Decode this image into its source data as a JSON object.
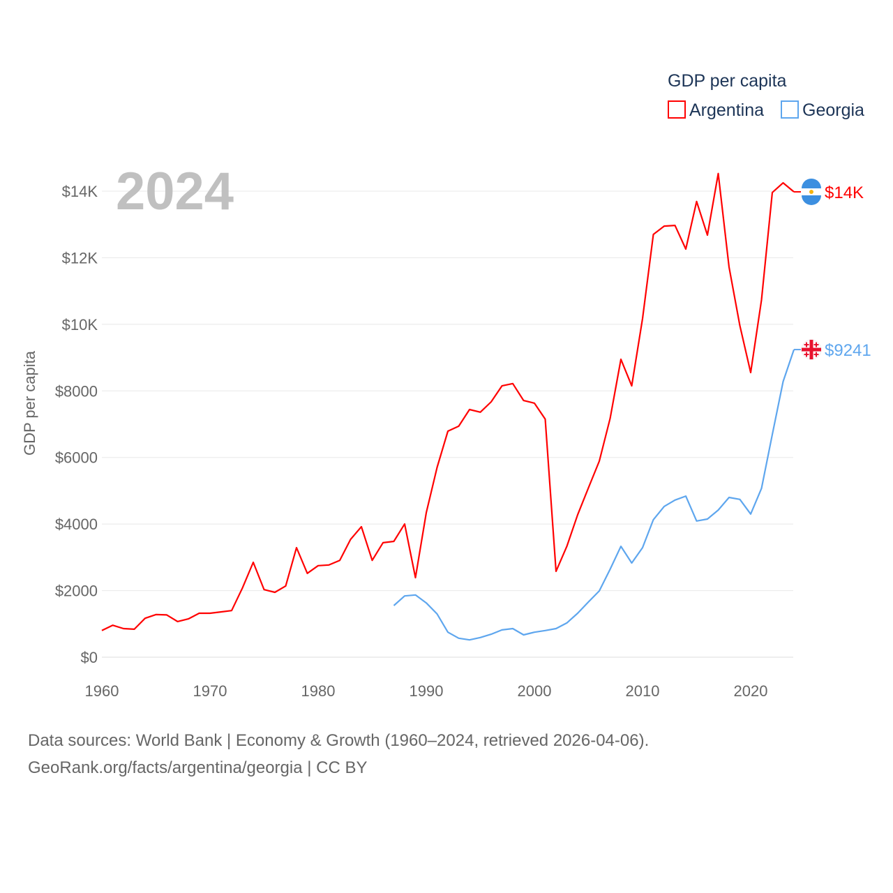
{
  "chart_data": {
    "type": "line",
    "year_label": "2024",
    "ylabel": "GDP per capita",
    "legend": {
      "title": "GDP per capita",
      "placement": "top-right"
    },
    "xlim": [
      1960,
      2024
    ],
    "ylim": [
      0,
      14500
    ],
    "x_ticks": [
      1960,
      1970,
      1980,
      1990,
      2000,
      2010,
      2020
    ],
    "x_tick_labels": [
      "1960",
      "1970",
      "1980",
      "1990",
      "2000",
      "2010",
      "2020"
    ],
    "y_ticks": [
      0,
      2000,
      4000,
      6000,
      8000,
      10000,
      12000,
      14000
    ],
    "y_tick_labels": [
      "$0",
      "$2000",
      "$4000",
      "$6000",
      "$8000",
      "$10K",
      "$12K",
      "$14K"
    ],
    "grid": true,
    "series": [
      {
        "name": "Argentina",
        "color": "#ff0000",
        "end_label": "$14K",
        "flag": "argentina-flag",
        "start_year": 1960,
        "values": [
          800,
          960,
          860,
          840,
          1170,
          1280,
          1270,
          1070,
          1150,
          1320,
          1320,
          1360,
          1400,
          2080,
          2850,
          2030,
          1950,
          2140,
          3290,
          2520,
          2750,
          2770,
          2910,
          3540,
          3920,
          2910,
          3440,
          3480,
          4000,
          2390,
          4340,
          5700,
          6790,
          6940,
          7440,
          7360,
          7670,
          8150,
          8220,
          7710,
          7630,
          7150,
          2580,
          3330,
          4280,
          5090,
          5890,
          7170,
          8950,
          8150,
          10170,
          12700,
          12950,
          12970,
          12260,
          13690,
          12680,
          14530,
          11720,
          9960,
          8550,
          10730,
          13960,
          14250,
          13980
        ]
      },
      {
        "name": "Georgia",
        "color": "#5ea6ee",
        "end_label": "$9241",
        "flag": "georgia-flag",
        "start_year": 1987,
        "values": [
          1550,
          1840,
          1870,
          1630,
          1300,
          750,
          570,
          520,
          590,
          690,
          820,
          860,
          670,
          750,
          800,
          860,
          1030,
          1320,
          1660,
          1990,
          2640,
          3330,
          2830,
          3290,
          4130,
          4530,
          4720,
          4840,
          4090,
          4150,
          4420,
          4800,
          4740,
          4300,
          5070,
          6690,
          8280,
          9241
        ]
      }
    ]
  },
  "footer": {
    "line1": "Data sources: World Bank | Economy & Growth (1960–2024, retrieved 2026-04-06).",
    "line2": "GeoRank.org/facts/argentina/georgia | CC BY"
  }
}
